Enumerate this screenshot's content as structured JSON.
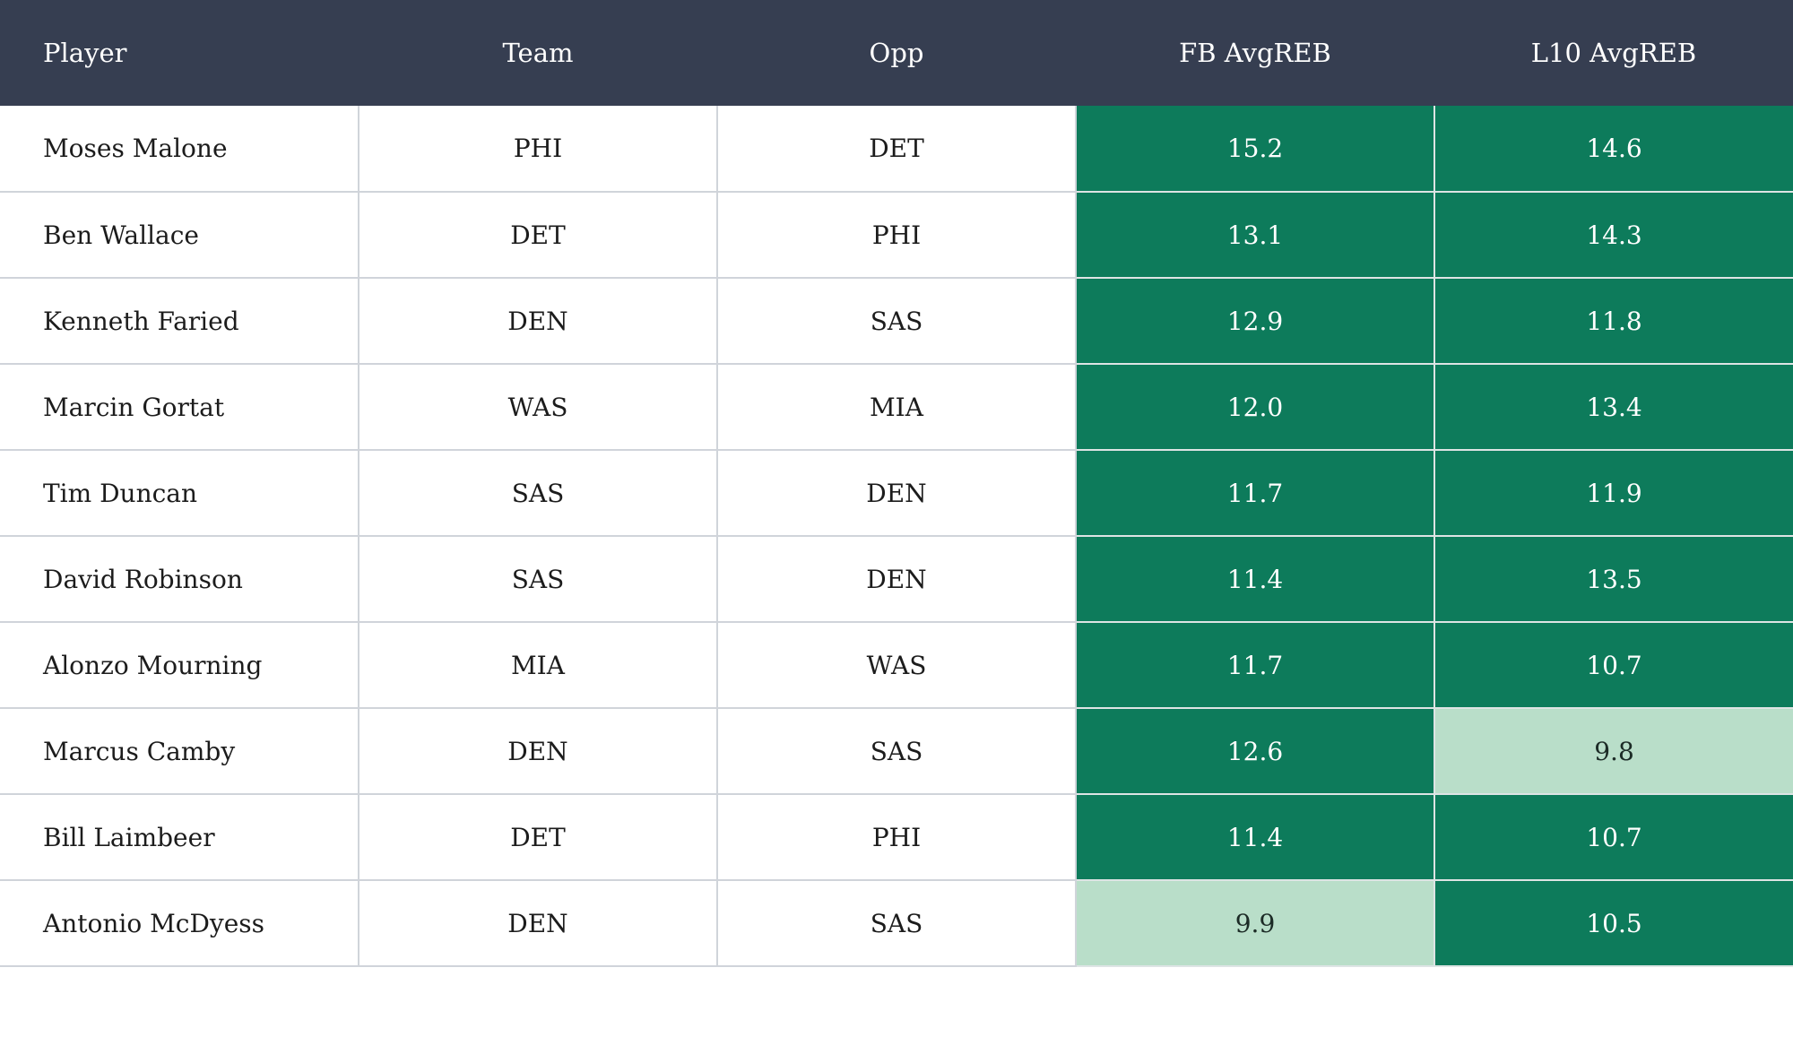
{
  "colors": {
    "header_bg": "#363e51",
    "header_text": "#ffffff",
    "cell_text": "#1c1c1c",
    "grid_line": "#d0d4da",
    "value_high_bg": "#0d7b5b",
    "value_high_text": "#ffffff",
    "value_low_bg": "#b9dec9",
    "value_low_text": "#1c2b26",
    "page_bg": "#ffffff"
  },
  "table": {
    "columns": [
      {
        "key": "player",
        "label": "Player"
      },
      {
        "key": "team",
        "label": "Team"
      },
      {
        "key": "opp",
        "label": "Opp"
      },
      {
        "key": "fb",
        "label": "FB AvgREB"
      },
      {
        "key": "l10",
        "label": "L10 AvgREB"
      }
    ],
    "rows": [
      {
        "player": "Moses Malone",
        "team": "PHI",
        "opp": "DET",
        "fb": "15.2",
        "fb_level": "high",
        "l10": "14.6",
        "l10_level": "high"
      },
      {
        "player": "Ben Wallace",
        "team": "DET",
        "opp": "PHI",
        "fb": "13.1",
        "fb_level": "high",
        "l10": "14.3",
        "l10_level": "high"
      },
      {
        "player": "Kenneth Faried",
        "team": "DEN",
        "opp": "SAS",
        "fb": "12.9",
        "fb_level": "high",
        "l10": "11.8",
        "l10_level": "high"
      },
      {
        "player": "Marcin Gortat",
        "team": "WAS",
        "opp": "MIA",
        "fb": "12.0",
        "fb_level": "high",
        "l10": "13.4",
        "l10_level": "high"
      },
      {
        "player": "Tim Duncan",
        "team": "SAS",
        "opp": "DEN",
        "fb": "11.7",
        "fb_level": "high",
        "l10": "11.9",
        "l10_level": "high"
      },
      {
        "player": "David Robinson",
        "team": "SAS",
        "opp": "DEN",
        "fb": "11.4",
        "fb_level": "high",
        "l10": "13.5",
        "l10_level": "high"
      },
      {
        "player": "Alonzo Mourning",
        "team": "MIA",
        "opp": "WAS",
        "fb": "11.7",
        "fb_level": "high",
        "l10": "10.7",
        "l10_level": "high"
      },
      {
        "player": "Marcus Camby",
        "team": "DEN",
        "opp": "SAS",
        "fb": "12.6",
        "fb_level": "high",
        "l10": "9.8",
        "l10_level": "low"
      },
      {
        "player": "Bill Laimbeer",
        "team": "DET",
        "opp": "PHI",
        "fb": "11.4",
        "fb_level": "high",
        "l10": "10.7",
        "l10_level": "high"
      },
      {
        "player": "Antonio McDyess",
        "team": "DEN",
        "opp": "SAS",
        "fb": "9.9",
        "fb_level": "low",
        "l10": "10.5",
        "l10_level": "high"
      }
    ]
  },
  "chart_data": {
    "type": "table",
    "columns": [
      "Player",
      "Team",
      "Opp",
      "FB AvgREB",
      "L10 AvgREB"
    ],
    "rows": [
      [
        "Moses Malone",
        "PHI",
        "DET",
        15.2,
        14.6
      ],
      [
        "Ben Wallace",
        "DET",
        "PHI",
        13.1,
        14.3
      ],
      [
        "Kenneth Faried",
        "DEN",
        "SAS",
        12.9,
        11.8
      ],
      [
        "Marcin Gortat",
        "WAS",
        "MIA",
        12.0,
        13.4
      ],
      [
        "Tim Duncan",
        "SAS",
        "DEN",
        11.7,
        11.9
      ],
      [
        "David Robinson",
        "SAS",
        "DEN",
        11.4,
        13.5
      ],
      [
        "Alonzo Mourning",
        "MIA",
        "WAS",
        11.7,
        10.7
      ],
      [
        "Marcus Camby",
        "DEN",
        "SAS",
        12.6,
        9.8
      ],
      [
        "Bill Laimbeer",
        "DET",
        "PHI",
        11.4,
        10.7
      ],
      [
        "Antonio McDyess",
        "DEN",
        "SAS",
        9.9,
        10.5
      ]
    ],
    "highlight_rule": "numeric cells shaded dark green (high) with white text; values below ~10 shaded light green (low) with dark text",
    "title": "",
    "legend_position": "none"
  }
}
